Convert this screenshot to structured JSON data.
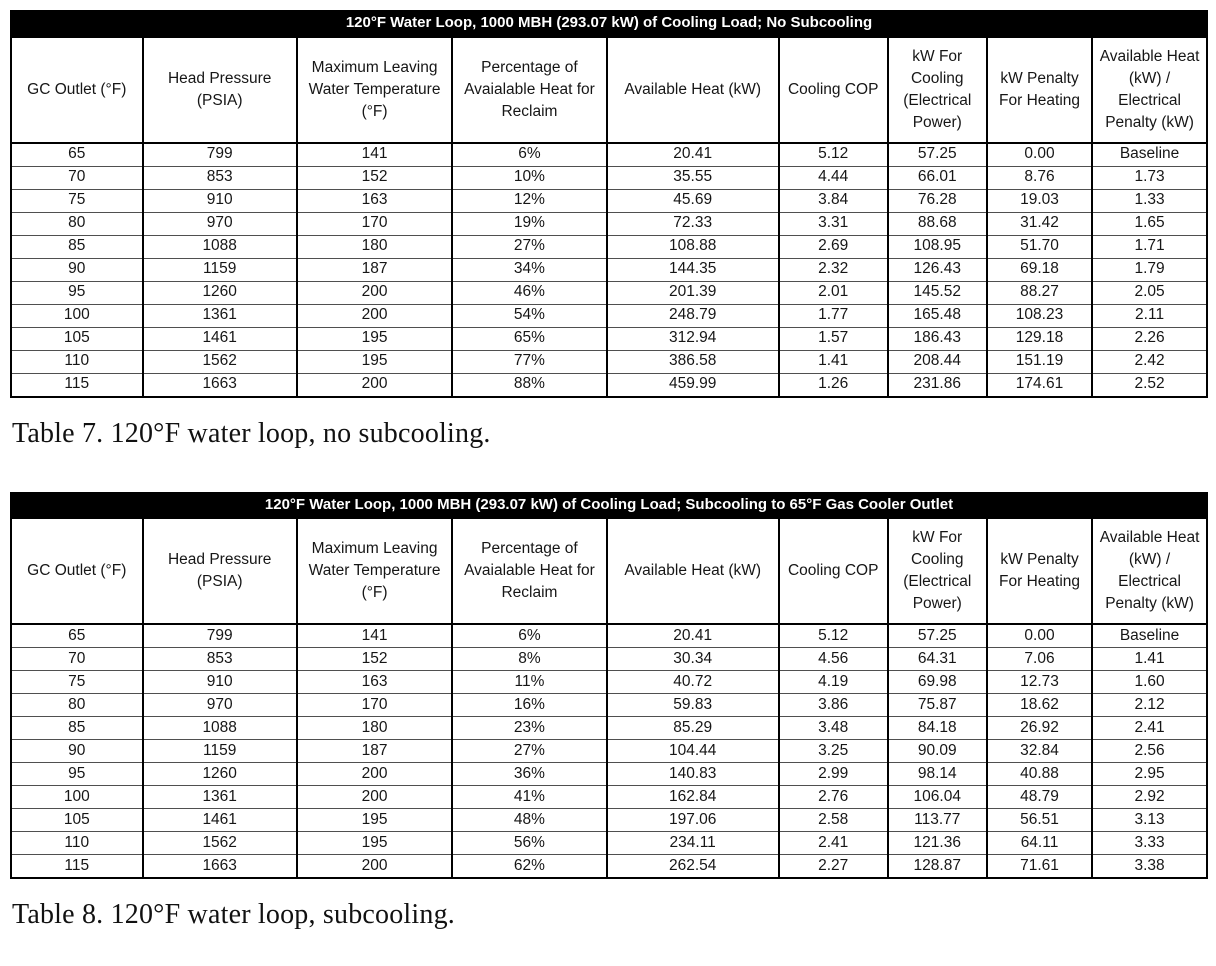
{
  "colors": {
    "page_bg": "#ffffff",
    "title_bar_bg": "#000000",
    "title_bar_text": "#ffffff",
    "grid_border": "#000000",
    "row_separator": "#4f4f4f",
    "cell_text": "#161616"
  },
  "layout": {
    "col_widths_pct": [
      11.0,
      12.9,
      13.0,
      12.9,
      14.4,
      9.1,
      8.3,
      8.8,
      9.6
    ]
  },
  "columns": [
    "GC Outlet (°F)",
    "Head Pressure (PSIA)",
    "Maximum Leaving Water Temperature (°F)",
    "Percentage of Avaialable Heat for Reclaim",
    "Available Heat (kW)",
    "Cooling COP",
    "kW For Cooling (Electrical Power)",
    "kW Penalty For Heating",
    "Available Heat (kW) / Electrical Penalty (kW)"
  ],
  "tables": [
    {
      "name": "table-7",
      "title": "120°F Water Loop, 1000 MBH (293.07 kW) of Cooling Load; No Subcooling",
      "caption": "Table 7. 120°F water loop, no subcooling.",
      "rows": [
        [
          "65",
          "799",
          "141",
          "6%",
          "20.41",
          "5.12",
          "57.25",
          "0.00",
          "Baseline"
        ],
        [
          "70",
          "853",
          "152",
          "10%",
          "35.55",
          "4.44",
          "66.01",
          "8.76",
          "1.73"
        ],
        [
          "75",
          "910",
          "163",
          "12%",
          "45.69",
          "3.84",
          "76.28",
          "19.03",
          "1.33"
        ],
        [
          "80",
          "970",
          "170",
          "19%",
          "72.33",
          "3.31",
          "88.68",
          "31.42",
          "1.65"
        ],
        [
          "85",
          "1088",
          "180",
          "27%",
          "108.88",
          "2.69",
          "108.95",
          "51.70",
          "1.71"
        ],
        [
          "90",
          "1159",
          "187",
          "34%",
          "144.35",
          "2.32",
          "126.43",
          "69.18",
          "1.79"
        ],
        [
          "95",
          "1260",
          "200",
          "46%",
          "201.39",
          "2.01",
          "145.52",
          "88.27",
          "2.05"
        ],
        [
          "100",
          "1361",
          "200",
          "54%",
          "248.79",
          "1.77",
          "165.48",
          "108.23",
          "2.11"
        ],
        [
          "105",
          "1461",
          "195",
          "65%",
          "312.94",
          "1.57",
          "186.43",
          "129.18",
          "2.26"
        ],
        [
          "110",
          "1562",
          "195",
          "77%",
          "386.58",
          "1.41",
          "208.44",
          "151.19",
          "2.42"
        ],
        [
          "115",
          "1663",
          "200",
          "88%",
          "459.99",
          "1.26",
          "231.86",
          "174.61",
          "2.52"
        ]
      ]
    },
    {
      "name": "table-8",
      "title": "120°F Water Loop, 1000 MBH (293.07 kW) of Cooling Load; Subcooling to 65°F Gas Cooler Outlet",
      "caption": "Table 8. 120°F water loop, subcooling.",
      "rows": [
        [
          "65",
          "799",
          "141",
          "6%",
          "20.41",
          "5.12",
          "57.25",
          "0.00",
          "Baseline"
        ],
        [
          "70",
          "853",
          "152",
          "8%",
          "30.34",
          "4.56",
          "64.31",
          "7.06",
          "1.41"
        ],
        [
          "75",
          "910",
          "163",
          "11%",
          "40.72",
          "4.19",
          "69.98",
          "12.73",
          "1.60"
        ],
        [
          "80",
          "970",
          "170",
          "16%",
          "59.83",
          "3.86",
          "75.87",
          "18.62",
          "2.12"
        ],
        [
          "85",
          "1088",
          "180",
          "23%",
          "85.29",
          "3.48",
          "84.18",
          "26.92",
          "2.41"
        ],
        [
          "90",
          "1159",
          "187",
          "27%",
          "104.44",
          "3.25",
          "90.09",
          "32.84",
          "2.56"
        ],
        [
          "95",
          "1260",
          "200",
          "36%",
          "140.83",
          "2.99",
          "98.14",
          "40.88",
          "2.95"
        ],
        [
          "100",
          "1361",
          "200",
          "41%",
          "162.84",
          "2.76",
          "106.04",
          "48.79",
          "2.92"
        ],
        [
          "105",
          "1461",
          "195",
          "48%",
          "197.06",
          "2.58",
          "113.77",
          "56.51",
          "3.13"
        ],
        [
          "110",
          "1562",
          "195",
          "56%",
          "234.11",
          "2.41",
          "121.36",
          "64.11",
          "3.33"
        ],
        [
          "115",
          "1663",
          "200",
          "62%",
          "262.54",
          "2.27",
          "128.87",
          "71.61",
          "3.38"
        ]
      ]
    }
  ]
}
